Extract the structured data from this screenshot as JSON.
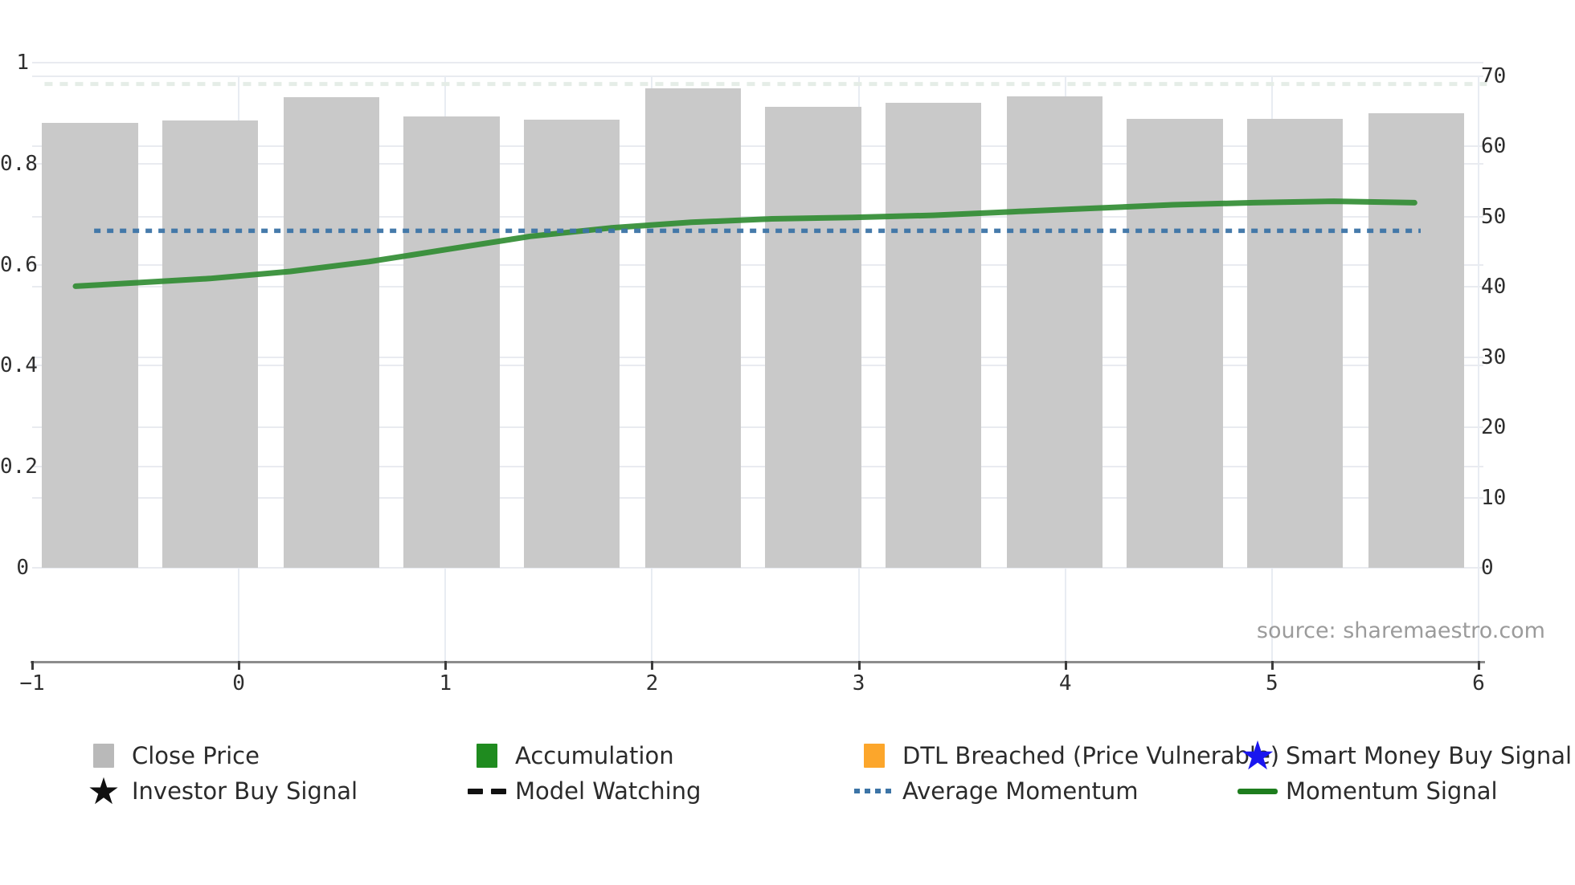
{
  "source_note": "source: sharemaestro.com",
  "legend": {
    "items": [
      {
        "label": "Close Price",
        "marker": "square",
        "color": "#b9b9b9"
      },
      {
        "label": "Accumulation",
        "marker": "square",
        "color": "#1f8b1f"
      },
      {
        "label": "DTL Breached (Price Vulnerable)",
        "marker": "square",
        "color": "#fca62b"
      },
      {
        "label": "Smart Money Buy Signal",
        "marker": "star",
        "color": "#1a16ef"
      },
      {
        "label": "Investor Buy Signal",
        "marker": "star",
        "color": "#111111"
      },
      {
        "label": "Model Watching",
        "marker": "dashes",
        "color": "#111111"
      },
      {
        "label": "Average Momentum",
        "marker": "dotted",
        "color": "#3c74a6"
      },
      {
        "label": "Momentum Signal",
        "marker": "line",
        "color": "#1e7d1e"
      }
    ]
  },
  "chart_data": {
    "type": "bar",
    "title": "",
    "grid": true,
    "legend_position": "bottom",
    "x_axis": {
      "range": [
        -1,
        6
      ],
      "ticks": [
        -1,
        0,
        1,
        2,
        3,
        4,
        5,
        6
      ],
      "tick_labels": [
        "−1",
        "0",
        "1",
        "2",
        "3",
        "4",
        "5",
        "6"
      ]
    },
    "left_axis": {
      "range": [
        0,
        1
      ],
      "ticks": [
        0,
        0.2,
        0.4,
        0.6,
        0.8,
        1
      ],
      "tick_labels": [
        "0",
        "0.2",
        "0.4",
        "0.6",
        "0.8",
        "1"
      ]
    },
    "right_axis": {
      "range": [
        0,
        70
      ],
      "ticks": [
        0,
        10,
        20,
        30,
        40,
        50,
        60,
        70
      ],
      "tick_labels": [
        "0",
        "10",
        "20",
        "30",
        "40",
        "50",
        "60",
        "70"
      ]
    },
    "bars": {
      "name": "Close Price",
      "axis": "left",
      "color": "#c9c9c9",
      "bar_width_x": 0.463,
      "x": [
        -0.72,
        -0.14,
        0.45,
        1.03,
        1.61,
        2.2,
        2.78,
        3.36,
        3.95,
        4.53,
        5.11,
        5.7
      ],
      "values": [
        0.88,
        0.885,
        0.932,
        0.894,
        0.887,
        0.949,
        0.913,
        0.921,
        0.933,
        0.889,
        0.889,
        0.9
      ]
    },
    "series": [
      {
        "name": "Momentum Signal",
        "type": "line",
        "axis": "right",
        "color": "#2e8b30",
        "points": [
          [
            -0.79,
            40.1
          ],
          [
            -0.49,
            40.6
          ],
          [
            -0.14,
            41.2
          ],
          [
            0.25,
            42.2
          ],
          [
            0.63,
            43.6
          ],
          [
            1.02,
            45.4
          ],
          [
            1.41,
            47.2
          ],
          [
            1.8,
            48.4
          ],
          [
            2.19,
            49.2
          ],
          [
            2.58,
            49.7
          ],
          [
            2.97,
            49.9
          ],
          [
            3.36,
            50.2
          ],
          [
            3.74,
            50.7
          ],
          [
            4.13,
            51.2
          ],
          [
            4.52,
            51.7
          ],
          [
            4.91,
            52.0
          ],
          [
            5.3,
            52.2
          ],
          [
            5.69,
            52.0
          ]
        ]
      },
      {
        "name": "Average Momentum",
        "type": "dotted-line",
        "axis": "right",
        "color": "#3c74a6",
        "value": 48.0,
        "x_start": -0.7,
        "x_end": 5.72
      },
      {
        "name": "Model Watching",
        "type": "faint-dashed-line",
        "axis": "right",
        "color": "#e5ede7",
        "value": 68.9,
        "x_start": -0.94,
        "x_end": 6.04
      }
    ]
  }
}
